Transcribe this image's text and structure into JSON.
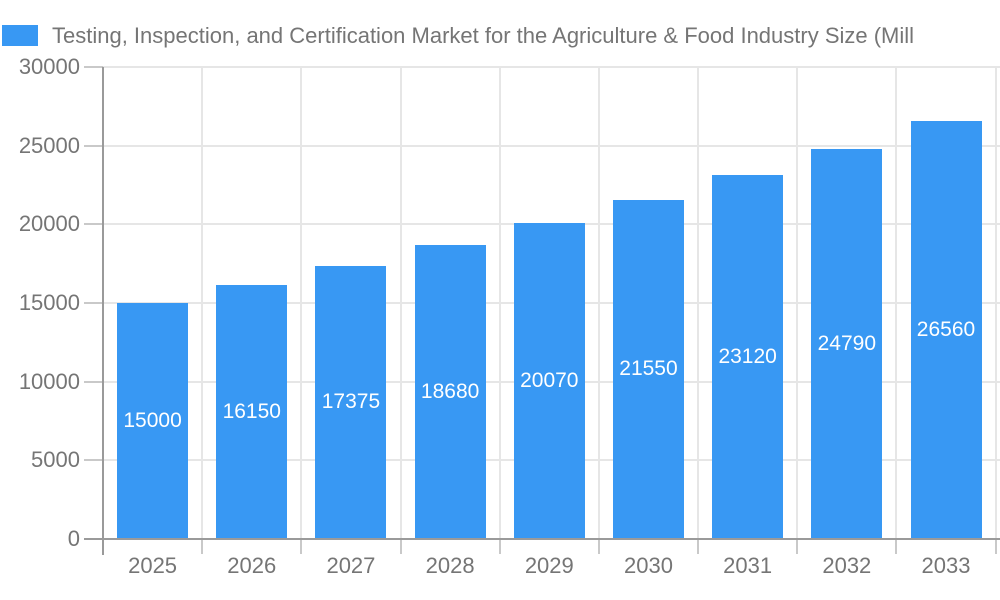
{
  "title": "Testing, Inspection, and Certification Market for the Agriculture & Food Industry Size (Mill",
  "colors": {
    "bar": "#3898F3",
    "label_text": "#757575",
    "value_label_text": "#FFFFFF",
    "gridline": "#E6E6E6",
    "axis_line": "#9A9A9A",
    "tick_mark": "#C9C9C9",
    "background": "#FFFFFF"
  },
  "legend": {
    "swatch_icon": "blue-square-swatch",
    "label": "Testing, Inspection, and Certification Market for the Agriculture & Food Industry Size (Mill"
  },
  "chart_data": {
    "type": "bar",
    "title": "Testing, Inspection, and Certification Market for the Agriculture & Food Industry Size (Mill",
    "categories": [
      "2025",
      "2026",
      "2027",
      "2028",
      "2029",
      "2030",
      "2031",
      "2032",
      "2033"
    ],
    "series": [
      {
        "name": "Testing, Inspection, and Certification Market for the Agriculture & Food Industry Size (Mill",
        "values": [
          15000,
          16150,
          17375,
          18680,
          20070,
          21550,
          23120,
          24790,
          26560
        ]
      }
    ],
    "value_labels": [
      15000,
      16150,
      17375,
      18680,
      20070,
      21550,
      23120,
      24790,
      26560
    ],
    "value_label_style": "white-centered-inside-bar",
    "xlabel": "",
    "ylabel": "",
    "ylim": [
      0,
      30000
    ],
    "yticks": [
      0,
      5000,
      10000,
      15000,
      20000,
      25000,
      30000
    ],
    "grid": true,
    "legend_position": "top-left"
  }
}
